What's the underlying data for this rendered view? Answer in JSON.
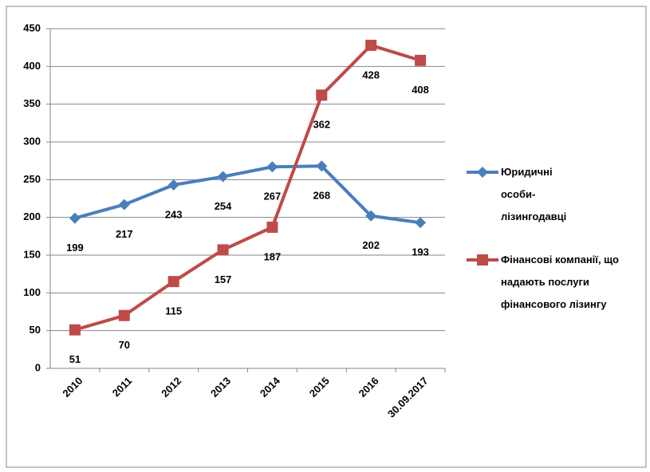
{
  "chart_data": {
    "type": "line",
    "categories": [
      "2010",
      "2011",
      "2012",
      "2013",
      "2014",
      "2015",
      "2016",
      "30.09.2017"
    ],
    "series": [
      {
        "name": "Юридичні особи-лізингодавці",
        "color": "#4a7ebb",
        "marker": "diamond",
        "values": [
          199,
          217,
          243,
          254,
          267,
          268,
          202,
          193
        ]
      },
      {
        "name": "Фінансові компанії, що надають послуги фінансового лізингу",
        "color": "#be4b48",
        "marker": "square",
        "values": [
          51,
          70,
          115,
          157,
          187,
          362,
          428,
          408
        ]
      }
    ],
    "ylim": [
      0,
      450
    ],
    "yticks": [
      0,
      50,
      100,
      150,
      200,
      250,
      300,
      350,
      400,
      450
    ],
    "grid": true,
    "legend": "right"
  }
}
